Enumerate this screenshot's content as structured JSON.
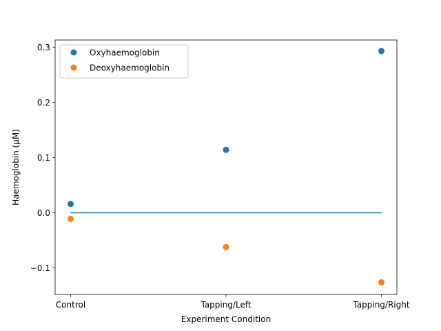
{
  "chart_data": {
    "type": "scatter",
    "title": "",
    "xlabel": "Experiment Condition",
    "ylabel": "Haemoglobin (µM)",
    "categories": [
      "Control",
      "Tapping/Left",
      "Tapping/Right"
    ],
    "ylim": [
      -0.148,
      0.313
    ],
    "yticks": [
      -0.1,
      0.0,
      0.1,
      0.2,
      0.3
    ],
    "ytick_labels": [
      "−0.1",
      "0.0",
      "0.1",
      "0.2",
      "0.3"
    ],
    "grid": false,
    "legend_position": "upper-left",
    "series": [
      {
        "name": "Oxyhaemoglobin",
        "color": "#1f77b4",
        "values": [
          0.016,
          0.114,
          0.293
        ]
      },
      {
        "name": "Deoxyhaemoglobin",
        "color": "#ff7f0e",
        "values": [
          -0.011,
          -0.062,
          -0.126
        ]
      }
    ],
    "reference_line": {
      "y": 0.0,
      "color": "#1f77b4",
      "x_from": "Control",
      "x_to": "Tapping/Right"
    }
  }
}
